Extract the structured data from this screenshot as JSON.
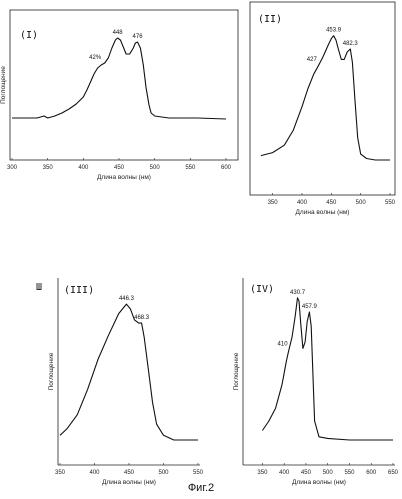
{
  "figure_caption": "Фиг.2",
  "chart_data": [
    {
      "type": "line",
      "panel_label": "(I)",
      "xlabel": "Длина волны (нм)",
      "ylabel": "Поглощение",
      "xlim": [
        300,
        600
      ],
      "xticks": [
        300,
        350,
        400,
        450,
        500,
        550,
        600
      ],
      "peaks": [
        {
          "x": 425,
          "label": "42%"
        },
        {
          "x": 448,
          "label": "448"
        },
        {
          "x": 476,
          "label": "476"
        }
      ],
      "x": [
        300,
        320,
        335,
        345,
        350,
        360,
        370,
        380,
        390,
        400,
        405,
        410,
        415,
        420,
        425,
        430,
        435,
        440,
        445,
        448,
        452,
        456,
        460,
        465,
        470,
        473,
        476,
        480,
        484,
        488,
        492,
        495,
        500,
        510,
        520,
        540,
        560,
        600
      ],
      "y": [
        0.02,
        0.02,
        0.02,
        0.04,
        0.02,
        0.04,
        0.07,
        0.11,
        0.16,
        0.23,
        0.3,
        0.38,
        0.46,
        0.52,
        0.55,
        0.57,
        0.62,
        0.72,
        0.8,
        0.82,
        0.8,
        0.73,
        0.66,
        0.66,
        0.72,
        0.77,
        0.78,
        0.72,
        0.55,
        0.32,
        0.15,
        0.07,
        0.04,
        0.03,
        0.02,
        0.02,
        0.02,
        0.01
      ]
    },
    {
      "type": "line",
      "panel_label": "(II)",
      "xlabel": "Длина волны (нм)",
      "ylabel": "",
      "xlim": [
        320,
        550
      ],
      "xticks": [
        350,
        400,
        450,
        500,
        550
      ],
      "peaks": [
        {
          "x": 427,
          "label": "427"
        },
        {
          "x": 453.9,
          "label": "453.9"
        },
        {
          "x": 482.3,
          "label": "482.3"
        }
      ],
      "x": [
        330,
        350,
        370,
        385,
        400,
        410,
        420,
        427,
        435,
        445,
        450,
        453.9,
        458,
        462,
        467,
        472,
        477,
        482.3,
        486,
        490,
        495,
        500,
        510,
        525,
        550
      ],
      "y": [
        0.03,
        0.05,
        0.1,
        0.2,
        0.36,
        0.48,
        0.58,
        0.63,
        0.69,
        0.78,
        0.82,
        0.84,
        0.81,
        0.75,
        0.68,
        0.68,
        0.73,
        0.75,
        0.66,
        0.42,
        0.15,
        0.04,
        0.01,
        0.0,
        0.0
      ]
    },
    {
      "type": "line",
      "panel_label": "(III)",
      "side_mark": "Ш",
      "xlabel": "Длина волны (нм)",
      "ylabel": "Поглощение",
      "xlim": [
        350,
        550
      ],
      "xticks": [
        350,
        400,
        450,
        500,
        550
      ],
      "peaks": [
        {
          "x": 446.3,
          "label": "446.3"
        },
        {
          "x": 468.3,
          "label": "468.3"
        }
      ],
      "x": [
        350,
        360,
        375,
        390,
        405,
        420,
        435,
        446.3,
        452,
        458,
        464,
        468.3,
        472,
        478,
        484,
        490,
        500,
        515,
        530,
        550
      ],
      "y": [
        0.03,
        0.07,
        0.16,
        0.32,
        0.51,
        0.66,
        0.8,
        0.86,
        0.83,
        0.76,
        0.74,
        0.74,
        0.65,
        0.45,
        0.24,
        0.1,
        0.03,
        0.0,
        0.0,
        0.0
      ]
    },
    {
      "type": "line",
      "panel_label": "(IV)",
      "xlabel": "Длина волны (нм)",
      "ylabel": "Поглощение",
      "xlim": [
        310,
        650
      ],
      "xticks": [
        350,
        400,
        450,
        500,
        550,
        600,
        650
      ],
      "peaks": [
        {
          "x": 410,
          "label": "410"
        },
        {
          "x": 430.7,
          "label": "430.7"
        },
        {
          "x": 457.9,
          "label": "457.9"
        }
      ],
      "x": [
        350,
        365,
        380,
        395,
        405,
        410,
        418,
        425,
        430.7,
        434,
        438,
        443,
        448,
        453,
        457.9,
        462,
        466,
        470,
        480,
        500,
        550,
        650
      ],
      "y": [
        0.06,
        0.12,
        0.2,
        0.35,
        0.5,
        0.56,
        0.65,
        0.78,
        0.9,
        0.88,
        0.74,
        0.58,
        0.62,
        0.75,
        0.81,
        0.72,
        0.42,
        0.12,
        0.02,
        0.01,
        0.0,
        0.0
      ]
    }
  ]
}
